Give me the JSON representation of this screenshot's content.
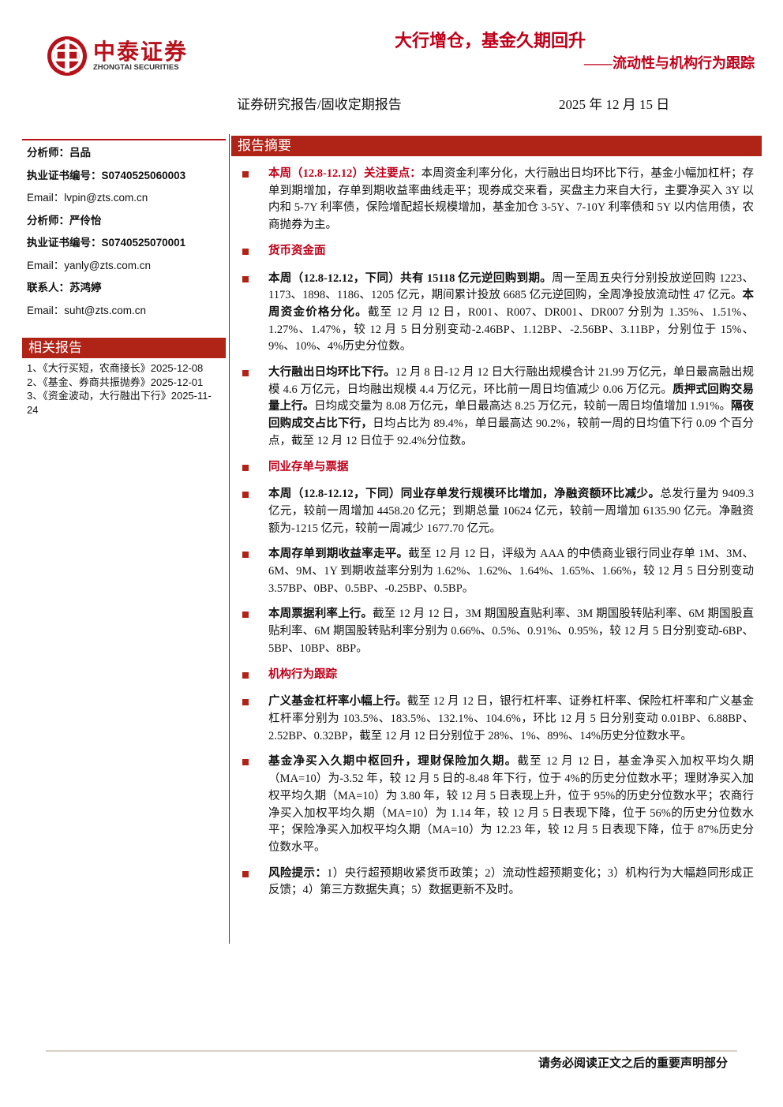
{
  "header": {
    "logo_cn": "中泰证券",
    "logo_en": "ZHONGTAI SECURITIES",
    "title": "大行增仓，基金久期回升",
    "subtitle": "——流动性与机构行为跟踪",
    "report_type": "证券研究报告/固收定期报告",
    "date": "2025 年 12 月 15 日"
  },
  "sidebar": {
    "contacts": [
      {
        "label": "分析师：",
        "value": "吕品"
      },
      {
        "label": "执业证书编号：",
        "value": "S0740525060003"
      },
      {
        "label": "Email：",
        "value": "lvpin@zts.com.cn"
      },
      {
        "label": "分析师：",
        "value": "严伶怡"
      },
      {
        "label": "执业证书编号：",
        "value": "S0740525070001"
      },
      {
        "label": "Email：",
        "value": "yanly@zts.com.cn"
      },
      {
        "label": "联系人：",
        "value": "苏鸿婷"
      },
      {
        "label": "Email：",
        "value": "suht@zts.com.cn"
      }
    ],
    "related_title": "相关报告",
    "related": [
      "1、《大行买短，农商接长》2025-12-08",
      "2、《基金、券商共振抛券》2025-12-01",
      "3、《资金波动，大行融出下行》2025-11-24"
    ]
  },
  "summary": {
    "title": "报告摘要",
    "blocks": [
      {
        "runs": [
          {
            "style": "red",
            "text": "本周（12.8-12.12）关注要点："
          },
          {
            "style": "plain",
            "text": "本周资金利率分化，大行融出日均环比下行，基金小幅加杠杆；存单到期增加，存单到期收益率曲线走平；现券成交来看，买盘主力来自大行，主要净买入 3Y 以内和 5-7Y 利率债，保险增配超长规模增加，基金加仓 3-5Y、7-10Y 利率债和 5Y 以内信用债，农商抛券为主。"
          }
        ]
      },
      {
        "heading": "货币资金面"
      },
      {
        "runs": [
          {
            "style": "bold",
            "text": "本周（12.8-12.12，下同）共有 15118 亿元逆回购到期。"
          },
          {
            "style": "plain",
            "text": "周一至周五央行分别投放逆回购 1223、1173、1898、1186、1205 亿元，期间累计投放 6685 亿元逆回购，全周净投放流动性 47 亿元。"
          },
          {
            "style": "bold",
            "text": "本周资金价格分化。"
          },
          {
            "style": "plain",
            "text": "截至 12 月 12 日，R001、R007、DR001、DR007 分别为 1.35%、1.51%、1.27%、1.47%，较 12 月 5 日分别变动-2.46BP、1.12BP、-2.56BP、3.11BP，分别位于 15%、9%、10%、4%历史分位数。"
          }
        ]
      },
      {
        "runs": [
          {
            "style": "bold",
            "text": "大行融出日均环比下行。"
          },
          {
            "style": "plain",
            "text": "12 月 8 日-12 月 12 日大行融出规模合计 21.99 万亿元，单日最高融出规模 4.6 万亿元，日均融出规模 4.4 万亿元，环比前一周日均值减少 0.06 万亿元。"
          },
          {
            "style": "bold",
            "text": "质押式回购交易量上行。"
          },
          {
            "style": "plain",
            "text": "日均成交量为 8.08 万亿元，单日最高达 8.25 万亿元，较前一周日均值增加 1.91%。"
          },
          {
            "style": "bold",
            "text": "隔夜回购成交占比下行，"
          },
          {
            "style": "plain",
            "text": "日均占比为 89.4%，单日最高达 90.2%，较前一周的日均值下行 0.09 个百分点，截至 12 月 12 日位于 92.4%分位数。"
          }
        ]
      },
      {
        "heading": "同业存单与票据"
      },
      {
        "runs": [
          {
            "style": "bold",
            "text": "本周（12.8-12.12，下同）同业存单发行规模环比增加，净融资额环比减少。"
          },
          {
            "style": "plain",
            "text": "总发行量为 9409.3 亿元，较前一周增加 4458.20 亿元；到期总量 10624 亿元，较前一周增加 6135.90 亿元。净融资额为-1215 亿元，较前一周减少 1677.70 亿元。"
          }
        ]
      },
      {
        "runs": [
          {
            "style": "bold",
            "text": "本周存单到期收益率走平。"
          },
          {
            "style": "plain",
            "text": "截至 12 月 12 日，评级为 AAA 的中债商业银行同业存单 1M、3M、6M、9M、1Y 到期收益率分别为 1.62%、1.62%、1.64%、1.65%、1.66%，较 12 月 5 日分别变动 3.57BP、0BP、0.5BP、-0.25BP、0.5BP。"
          }
        ]
      },
      {
        "runs": [
          {
            "style": "bold",
            "text": "本周票据利率上行。"
          },
          {
            "style": "plain",
            "text": "截至 12 月 12 日，3M 期国股直贴利率、3M 期国股转贴利率、6M 期国股直贴利率、6M 期国股转贴利率分别为 0.66%、0.5%、0.91%、0.95%，较 12 月 5 日分别变动-6BP、5BP、10BP、8BP。"
          }
        ]
      },
      {
        "heading": "机构行为跟踪"
      },
      {
        "runs": [
          {
            "style": "bold",
            "text": "广义基金杠杆率小幅上行。"
          },
          {
            "style": "plain",
            "text": "截至 12 月 12 日，银行杠杆率、证券杠杆率、保险杠杆率和广义基金杠杆率分别为 103.5%、183.5%、132.1%、104.6%，环比 12 月 5 日分别变动 0.01BP、6.88BP、2.52BP、0.32BP，截至 12 月 12 日分别位于 28%、1%、89%、14%历史分位数水平。"
          }
        ]
      },
      {
        "runs": [
          {
            "style": "bold",
            "text": "基金净买入久期中枢回升，理财保险加久期。"
          },
          {
            "style": "plain",
            "text": "截至 12 月 12 日，基金净买入加权平均久期（MA=10）为-3.52 年，较 12 月 5 日的-8.48 年下行，位于 4%的历史分位数水平；理财净买入加权平均久期（MA=10）为 3.80 年，较 12 月 5 日表现上升，位于 95%的历史分位数水平；农商行净买入加权平均久期（MA=10）为 1.14 年，较 12 月 5 日表现下降，位于 56%的历史分位数水平；保险净买入加权平均久期（MA=10）为 12.23 年，较 12 月 5 日表现下降，位于 87%历史分位数水平。"
          }
        ]
      },
      {
        "runs": [
          {
            "style": "bold",
            "text": "风险提示："
          },
          {
            "style": "plain",
            "text": "1）央行超预期收紧货币政策；2）流动性超预期变化；3）机构行为大幅趋同形成正反馈；4）第三方数据失真；5）数据更新不及时。"
          }
        ]
      }
    ]
  },
  "footer": {
    "notice": "请务必阅读正文之后的重要声明部分"
  }
}
